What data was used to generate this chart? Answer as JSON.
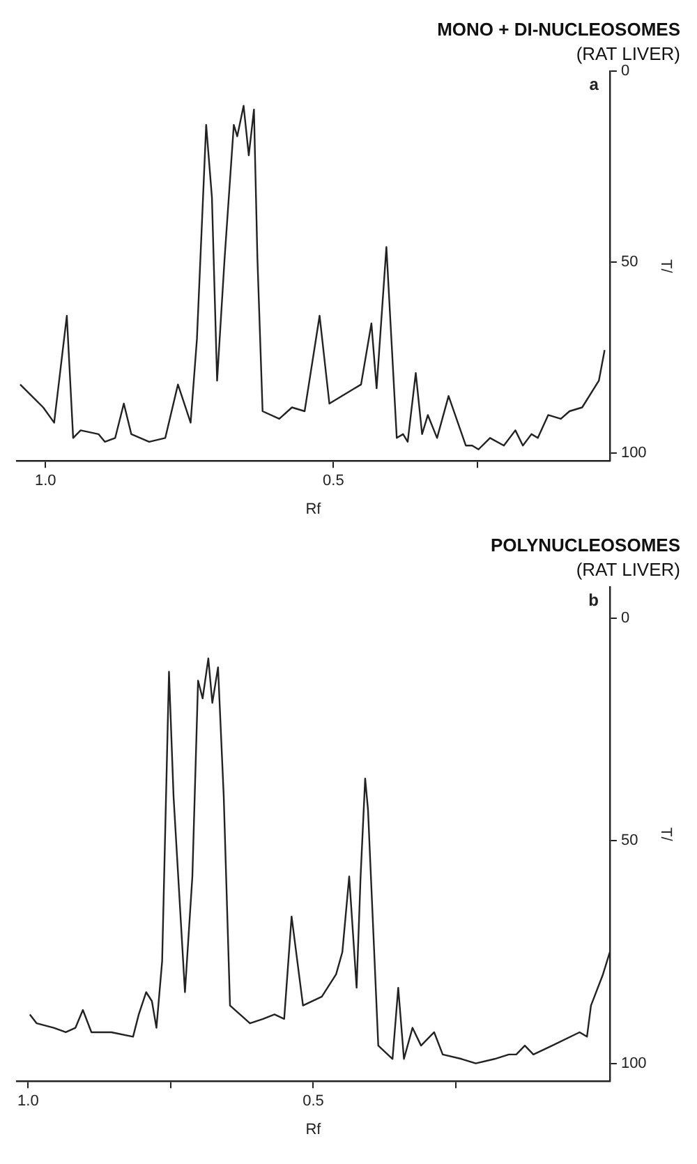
{
  "chart_data": [
    {
      "type": "line",
      "title": "MONO + DI-NUCLEOSOMES",
      "subtitle": "(RAT LIVER)",
      "annotations": [
        "a"
      ],
      "xlabel": "Rf",
      "ylabel": "T/",
      "xlim": [
        1.05,
        0.02
      ],
      "xticks": [
        {
          "value": 1,
          "label": "1.0"
        },
        {
          "value": 0.5,
          "label": "0.5"
        },
        {
          "value": 0.25,
          "label": null
        }
      ],
      "ylim": [
        102,
        0
      ],
      "yticks": [
        0,
        50,
        100
      ],
      "grid": false,
      "legend": false,
      "marker": "none",
      "line_style": "solid",
      "series": [
        {
          "color": "#222222",
          "x": [
            1.044,
            1.004,
            0.985,
            0.963,
            0.952,
            0.939,
            0.908,
            0.897,
            0.879,
            0.864,
            0.851,
            0.82,
            0.792,
            0.77,
            0.748,
            0.737,
            0.721,
            0.711,
            0.702,
            0.689,
            0.673,
            0.667,
            0.656,
            0.647,
            0.638,
            0.632,
            0.623,
            0.594,
            0.572,
            0.55,
            0.524,
            0.507,
            0.452,
            0.434,
            0.425,
            0.408,
            0.39,
            0.379,
            0.371,
            0.357,
            0.346,
            0.336,
            0.32,
            0.3,
            0.27,
            0.259,
            0.248,
            0.228,
            0.204,
            0.184,
            0.171,
            0.156,
            0.145,
            0.127,
            0.105,
            0.09,
            0.068,
            0.039,
            0.029
          ],
          "values": [
            82,
            88,
            92,
            64,
            96,
            94,
            95,
            97,
            96,
            87,
            95,
            97,
            96,
            82,
            92,
            70,
            14,
            33,
            81,
            49,
            14,
            17,
            9,
            22,
            10,
            49,
            89,
            91,
            88,
            89,
            64,
            87,
            82,
            66,
            83,
            46,
            96,
            95,
            97,
            79,
            95,
            90,
            96,
            85,
            98,
            98,
            99,
            96,
            98,
            94,
            98,
            95,
            96,
            90,
            91,
            89,
            88,
            81,
            73
          ]
        }
      ]
    },
    {
      "type": "line",
      "title": "POLYNUCLEOSOMES",
      "subtitle": "(RAT LIVER)",
      "annotations": [
        "b"
      ],
      "xlabel": "Rf",
      "ylabel": "T/",
      "xlim": [
        1.02,
        -0.02
      ],
      "xticks": [
        {
          "value": 1,
          "label": "1.0"
        },
        {
          "value": 0.75,
          "label": null
        },
        {
          "value": 0.5,
          "label": "0.5"
        },
        {
          "value": 0.25,
          "label": null
        }
      ],
      "ylim": [
        104,
        -7
      ],
      "yticks": [
        0,
        50,
        100
      ],
      "grid": false,
      "legend": false,
      "marker": "none",
      "line_style": "solid",
      "series": [
        {
          "color": "#222222",
          "x": [
            0.997,
            0.985,
            0.955,
            0.934,
            0.917,
            0.904,
            0.889,
            0.854,
            0.816,
            0.806,
            0.793,
            0.783,
            0.775,
            0.765,
            0.753,
            0.745,
            0.725,
            0.712,
            0.702,
            0.694,
            0.684,
            0.677,
            0.667,
            0.657,
            0.646,
            0.611,
            0.588,
            0.568,
            0.551,
            0.538,
            0.518,
            0.485,
            0.46,
            0.449,
            0.437,
            0.424,
            0.417,
            0.409,
            0.404,
            0.386,
            0.361,
            0.351,
            0.341,
            0.326,
            0.311,
            0.288,
            0.273,
            0.24,
            0.215,
            0.182,
            0.157,
            0.144,
            0.129,
            0.114,
            0.081,
            0.033,
            0.02,
            0.013,
            -0.008,
            -0.02
          ],
          "values": [
            89,
            91,
            92,
            93,
            92,
            88,
            93,
            93,
            94,
            89,
            84,
            86,
            92,
            77,
            12,
            40,
            84,
            58,
            14,
            18,
            9,
            19,
            11,
            40,
            87,
            91,
            90,
            89,
            90,
            67,
            87,
            85,
            80,
            75,
            58,
            83,
            58,
            36,
            43,
            96,
            99,
            83,
            99,
            92,
            96,
            93,
            98,
            99,
            100,
            99,
            98,
            98,
            96,
            98,
            96,
            93,
            94,
            87,
            80,
            75
          ]
        }
      ]
    }
  ]
}
